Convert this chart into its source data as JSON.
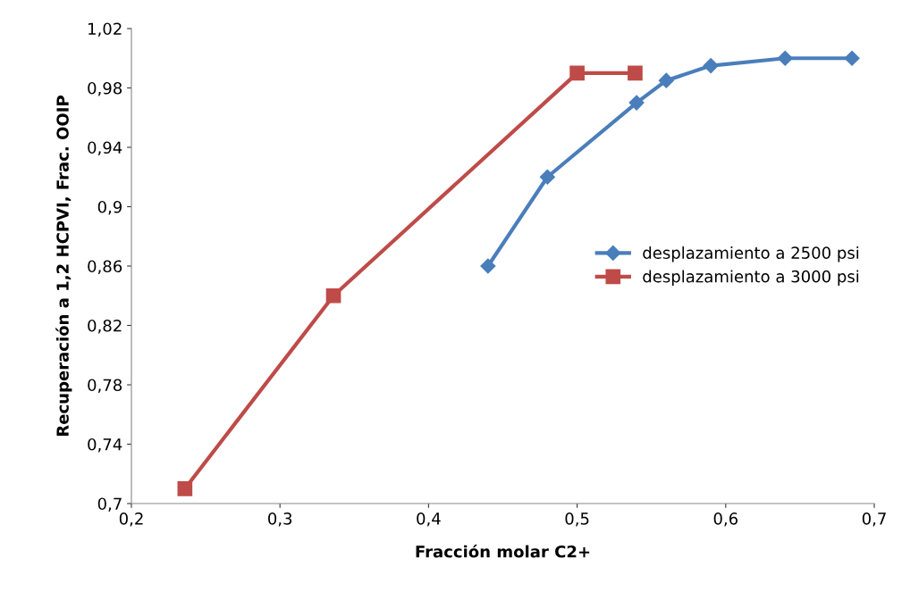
{
  "chart_data": {
    "type": "line",
    "xlabel": "Fracción molar C2+",
    "ylabel": "Recuperación a 1,2 HCPVI, Frac. OOIP",
    "xlim": [
      0.2,
      0.7
    ],
    "ylim": [
      0.7,
      1.02
    ],
    "xticks": [
      {
        "value": 0.2,
        "label": "0,2"
      },
      {
        "value": 0.3,
        "label": "0,3"
      },
      {
        "value": 0.4,
        "label": "0,4"
      },
      {
        "value": 0.5,
        "label": "0,5"
      },
      {
        "value": 0.6,
        "label": "0,6"
      },
      {
        "value": 0.7,
        "label": "0,7"
      }
    ],
    "yticks": [
      {
        "value": 0.7,
        "label": "0,7"
      },
      {
        "value": 0.74,
        "label": "0,74"
      },
      {
        "value": 0.78,
        "label": "0,78"
      },
      {
        "value": 0.82,
        "label": "0,82"
      },
      {
        "value": 0.86,
        "label": "0,86"
      },
      {
        "value": 0.9,
        "label": "0,9"
      },
      {
        "value": 0.94,
        "label": "0,94"
      },
      {
        "value": 0.98,
        "label": "0,98"
      },
      {
        "value": 1.02,
        "label": "1,02"
      }
    ],
    "grid": false,
    "legend": "center right",
    "line_style": "solid",
    "series": [
      {
        "name": "desplazamiento a 2500 psi",
        "color": "#4a7ebb",
        "marker": "diamond",
        "x": [
          0.44,
          0.48,
          0.54,
          0.56,
          0.59,
          0.64,
          0.685
        ],
        "values": [
          0.86,
          0.92,
          0.97,
          0.985,
          0.995,
          1.0,
          1.0
        ]
      },
      {
        "name": "desplazamiento a 3000 psi",
        "color": "#be4b48",
        "marker": "square",
        "x": [
          0.236,
          0.336,
          0.5,
          0.539
        ],
        "values": [
          0.71,
          0.84,
          0.99,
          0.99
        ]
      }
    ]
  }
}
